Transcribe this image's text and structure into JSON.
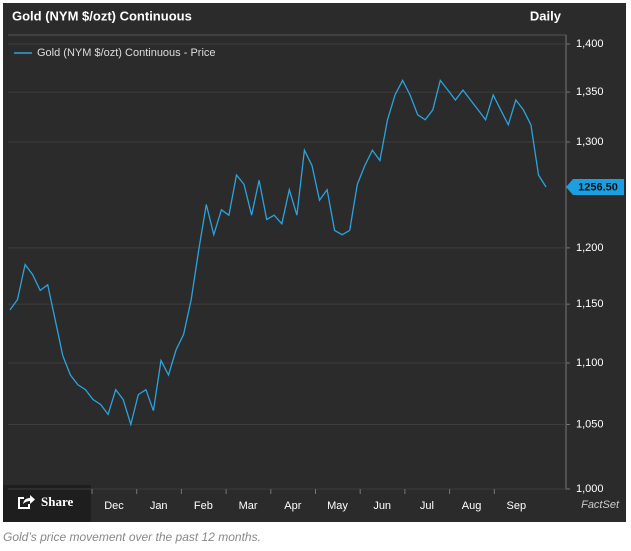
{
  "header": {
    "title": "Gold (NYM $/ozt) Continuous",
    "frequency": "Daily"
  },
  "chart_data": {
    "type": "line",
    "series": [
      {
        "name": "Gold (NYM $/ozt) Continuous - Price",
        "color": "#2ba3dc",
        "values": [
          1145,
          1154,
          1185,
          1176,
          1162,
          1167,
          1136,
          1106,
          1090,
          1082,
          1078,
          1070,
          1066,
          1058,
          1078,
          1070,
          1050,
          1074,
          1078,
          1061,
          1102,
          1090,
          1111,
          1124,
          1154,
          1198,
          1240,
          1212,
          1235,
          1230,
          1268,
          1259,
          1230,
          1263,
          1226,
          1230,
          1222,
          1254,
          1230,
          1292,
          1277,
          1244,
          1254,
          1216,
          1212,
          1216,
          1259,
          1277,
          1292,
          1282,
          1322,
          1347,
          1362,
          1347,
          1327,
          1322,
          1332,
          1362,
          1352,
          1342,
          1352,
          1342,
          1332,
          1322,
          1347,
          1332,
          1317,
          1342,
          1332,
          1317,
          1268,
          1256.5
        ]
      }
    ],
    "month_labels": [
      "Dec",
      "Jan",
      "Feb",
      "Mar",
      "Apr",
      "May",
      "Jun",
      "Jul",
      "Aug",
      "Sep"
    ],
    "ylim": [
      1000,
      1400
    ],
    "log_scale": true,
    "grid": true,
    "yticks": [
      {
        "value": 1000,
        "label": "1,000"
      },
      {
        "value": 1050,
        "label": "1,050"
      },
      {
        "value": 1100,
        "label": "1,100"
      },
      {
        "value": 1150,
        "label": "1,150"
      },
      {
        "value": 1200,
        "label": "1,200"
      },
      {
        "value": 1300,
        "label": "1,300"
      },
      {
        "value": 1350,
        "label": "1,350"
      },
      {
        "value": 1400,
        "label": "1,400"
      }
    ],
    "last_price": {
      "value": 1256.5,
      "label": "1256.50"
    }
  },
  "share_button": "Share",
  "source": "FactSet",
  "caption": "Gold’s price movement over the past 12 months."
}
